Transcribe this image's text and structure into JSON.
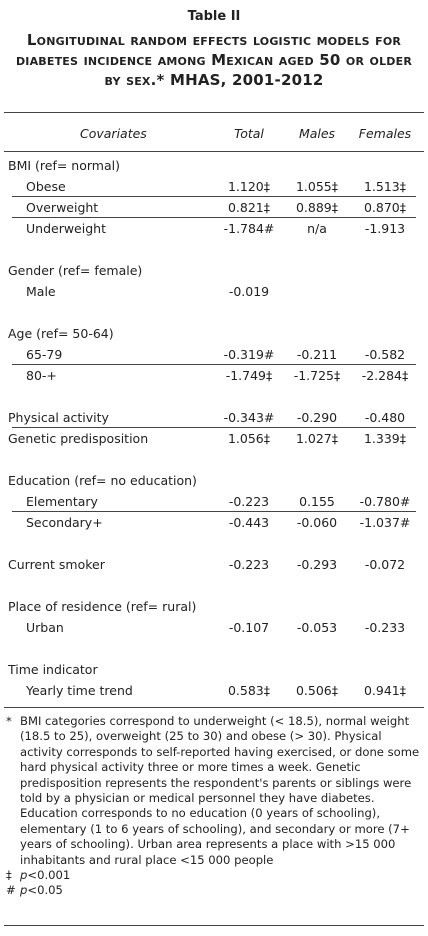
{
  "title": "Table II",
  "subtitle": "Longitudinal random effects logistic models for diabetes incidence among Mexican aged 50 or older by sex.* MHAS, 2001-2012",
  "header": [
    "Covariates",
    "Total",
    "Males",
    "Females"
  ],
  "blocks": [
    [
      {
        "label": "BMI (ref= normal)",
        "items": [
          {
            "label": "Obese",
            "total": "1.120‡",
            "males": "1.055‡",
            "females": "1.513‡"
          },
          {
            "label": "Overweight",
            "total": "0.821‡",
            "males": "0.889‡",
            "females": "0.870‡"
          },
          {
            "label": "Underweight",
            "total": "-1.784#",
            "males": "n/a",
            "females": "-1.913"
          }
        ]
      }
    ],
    [
      {
        "label": "Gender (ref= female)",
        "items": [
          {
            "label": "Male",
            "total": "-0.019"
          }
        ]
      }
    ],
    [
      {
        "label": "Age (ref= 50-64)",
        "items": [
          {
            "label": "65-79",
            "total": "-0.319#",
            "males": "-0.211",
            "females": "-0.582"
          },
          {
            "label": "80-+",
            "total": "-1.749‡",
            "males": "-1.725‡",
            "females": "-2.284‡"
          }
        ]
      }
    ],
    [
      {
        "label": "Physical activity",
        "total": "-0.343#",
        "males": "-0.290",
        "females": "-0.480"
      },
      {
        "label": "Genetic predisposition",
        "total": "1.056‡",
        "males": "1.027‡",
        "females": "1.339‡"
      }
    ],
    [
      {
        "label": "Education (ref= no education)",
        "items": [
          {
            "label": "Elementary",
            "total": "-0.223",
            "males": "0.155",
            "females": "-0.780#"
          },
          {
            "label": "Secondary+",
            "total": "-0.443",
            "males": "-0.060",
            "females": "-1.037#"
          }
        ]
      }
    ],
    [
      {
        "label": "Current smoker",
        "total": "-0.223",
        "males": "-0.293",
        "females": "-0.072"
      }
    ],
    [
      {
        "label": "Place of residence (ref= rural)",
        "items": [
          {
            "label": "Urban",
            "total": "-0.107",
            "males": "-0.053",
            "females": "-0.233"
          }
        ]
      }
    ],
    [
      {
        "label": "Time indicator",
        "items": [
          {
            "label": "Yearly time trend",
            "total": "0.583‡",
            "males": "0.506‡",
            "females": "0.941‡"
          }
        ]
      }
    ]
  ],
  "footnotes": [
    {
      "symbol": "*",
      "text": "BMI categories correspond to underweight (< 18.5), normal weight (18.5 to 25), overweight (25 to 30) and obese (> 30). Physical activity corresponds to self-reported having exercised, or done some hard physical activity three or more times a week. Genetic predisposition represents the respondent's parents or siblings were told by a physician or medical personnel they have diabetes. Education corresponds to no education (0 years of schooling), elementary (1 to 6 years of schooling), and secondary or more (7+ years of schooling). Urban area represents a place with >15 000 inhabitants and rural place <15 000 people"
    },
    {
      "symbol": "‡",
      "italic": "p",
      "text": "<0.001"
    },
    {
      "symbol": "#",
      "italic": "p",
      "text": "<0.05"
    }
  ]
}
